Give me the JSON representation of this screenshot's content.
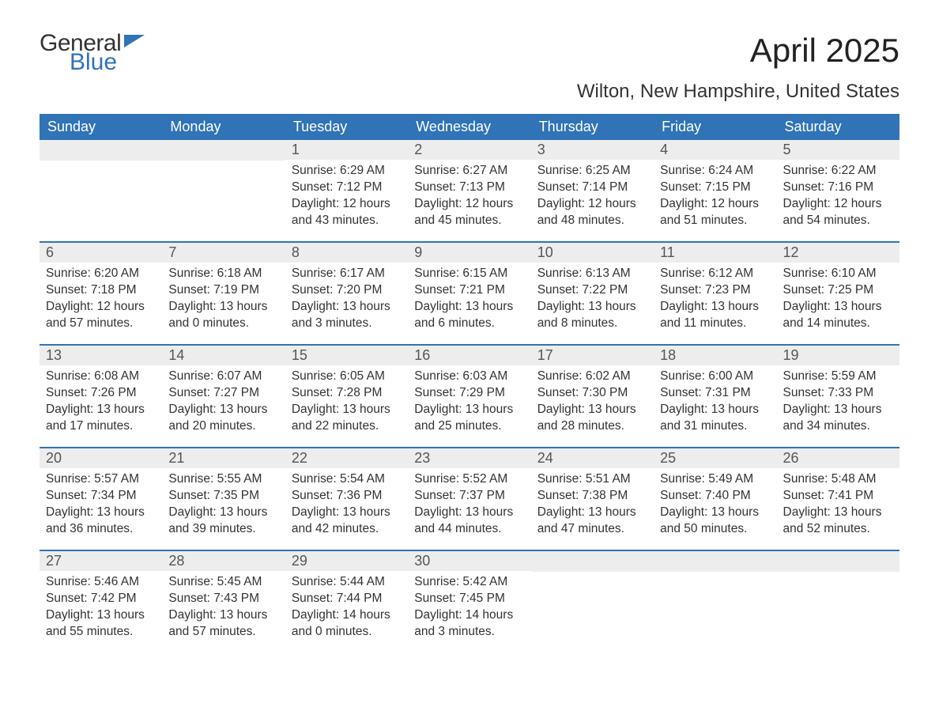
{
  "logo": {
    "line1": "General",
    "line2": "Blue",
    "flag_color": "#3073b7"
  },
  "title": "April 2025",
  "subtitle": "Wilton, New Hampshire, United States",
  "colors": {
    "header_bg": "#3073b7",
    "header_text": "#ffffff",
    "daynum_bg": "#ededed",
    "daynum_text": "#555555",
    "body_text": "#333333",
    "page_bg": "#ffffff"
  },
  "typography": {
    "title_fontsize": 42,
    "subtitle_fontsize": 24,
    "header_fontsize": 18,
    "daynum_fontsize": 18,
    "body_fontsize": 15.5
  },
  "day_headers": [
    "Sunday",
    "Monday",
    "Tuesday",
    "Wednesday",
    "Thursday",
    "Friday",
    "Saturday"
  ],
  "weeks": [
    [
      null,
      null,
      {
        "n": "1",
        "sunrise": "6:29 AM",
        "sunset": "7:12 PM",
        "dl1": "12 hours",
        "dl2": "and 43 minutes."
      },
      {
        "n": "2",
        "sunrise": "6:27 AM",
        "sunset": "7:13 PM",
        "dl1": "12 hours",
        "dl2": "and 45 minutes."
      },
      {
        "n": "3",
        "sunrise": "6:25 AM",
        "sunset": "7:14 PM",
        "dl1": "12 hours",
        "dl2": "and 48 minutes."
      },
      {
        "n": "4",
        "sunrise": "6:24 AM",
        "sunset": "7:15 PM",
        "dl1": "12 hours",
        "dl2": "and 51 minutes."
      },
      {
        "n": "5",
        "sunrise": "6:22 AM",
        "sunset": "7:16 PM",
        "dl1": "12 hours",
        "dl2": "and 54 minutes."
      }
    ],
    [
      {
        "n": "6",
        "sunrise": "6:20 AM",
        "sunset": "7:18 PM",
        "dl1": "12 hours",
        "dl2": "and 57 minutes."
      },
      {
        "n": "7",
        "sunrise": "6:18 AM",
        "sunset": "7:19 PM",
        "dl1": "13 hours",
        "dl2": "and 0 minutes."
      },
      {
        "n": "8",
        "sunrise": "6:17 AM",
        "sunset": "7:20 PM",
        "dl1": "13 hours",
        "dl2": "and 3 minutes."
      },
      {
        "n": "9",
        "sunrise": "6:15 AM",
        "sunset": "7:21 PM",
        "dl1": "13 hours",
        "dl2": "and 6 minutes."
      },
      {
        "n": "10",
        "sunrise": "6:13 AM",
        "sunset": "7:22 PM",
        "dl1": "13 hours",
        "dl2": "and 8 minutes."
      },
      {
        "n": "11",
        "sunrise": "6:12 AM",
        "sunset": "7:23 PM",
        "dl1": "13 hours",
        "dl2": "and 11 minutes."
      },
      {
        "n": "12",
        "sunrise": "6:10 AM",
        "sunset": "7:25 PM",
        "dl1": "13 hours",
        "dl2": "and 14 minutes."
      }
    ],
    [
      {
        "n": "13",
        "sunrise": "6:08 AM",
        "sunset": "7:26 PM",
        "dl1": "13 hours",
        "dl2": "and 17 minutes."
      },
      {
        "n": "14",
        "sunrise": "6:07 AM",
        "sunset": "7:27 PM",
        "dl1": "13 hours",
        "dl2": "and 20 minutes."
      },
      {
        "n": "15",
        "sunrise": "6:05 AM",
        "sunset": "7:28 PM",
        "dl1": "13 hours",
        "dl2": "and 22 minutes."
      },
      {
        "n": "16",
        "sunrise": "6:03 AM",
        "sunset": "7:29 PM",
        "dl1": "13 hours",
        "dl2": "and 25 minutes."
      },
      {
        "n": "17",
        "sunrise": "6:02 AM",
        "sunset": "7:30 PM",
        "dl1": "13 hours",
        "dl2": "and 28 minutes."
      },
      {
        "n": "18",
        "sunrise": "6:00 AM",
        "sunset": "7:31 PM",
        "dl1": "13 hours",
        "dl2": "and 31 minutes."
      },
      {
        "n": "19",
        "sunrise": "5:59 AM",
        "sunset": "7:33 PM",
        "dl1": "13 hours",
        "dl2": "and 34 minutes."
      }
    ],
    [
      {
        "n": "20",
        "sunrise": "5:57 AM",
        "sunset": "7:34 PM",
        "dl1": "13 hours",
        "dl2": "and 36 minutes."
      },
      {
        "n": "21",
        "sunrise": "5:55 AM",
        "sunset": "7:35 PM",
        "dl1": "13 hours",
        "dl2": "and 39 minutes."
      },
      {
        "n": "22",
        "sunrise": "5:54 AM",
        "sunset": "7:36 PM",
        "dl1": "13 hours",
        "dl2": "and 42 minutes."
      },
      {
        "n": "23",
        "sunrise": "5:52 AM",
        "sunset": "7:37 PM",
        "dl1": "13 hours",
        "dl2": "and 44 minutes."
      },
      {
        "n": "24",
        "sunrise": "5:51 AM",
        "sunset": "7:38 PM",
        "dl1": "13 hours",
        "dl2": "and 47 minutes."
      },
      {
        "n": "25",
        "sunrise": "5:49 AM",
        "sunset": "7:40 PM",
        "dl1": "13 hours",
        "dl2": "and 50 minutes."
      },
      {
        "n": "26",
        "sunrise": "5:48 AM",
        "sunset": "7:41 PM",
        "dl1": "13 hours",
        "dl2": "and 52 minutes."
      }
    ],
    [
      {
        "n": "27",
        "sunrise": "5:46 AM",
        "sunset": "7:42 PM",
        "dl1": "13 hours",
        "dl2": "and 55 minutes."
      },
      {
        "n": "28",
        "sunrise": "5:45 AM",
        "sunset": "7:43 PM",
        "dl1": "13 hours",
        "dl2": "and 57 minutes."
      },
      {
        "n": "29",
        "sunrise": "5:44 AM",
        "sunset": "7:44 PM",
        "dl1": "14 hours",
        "dl2": "and 0 minutes."
      },
      {
        "n": "30",
        "sunrise": "5:42 AM",
        "sunset": "7:45 PM",
        "dl1": "14 hours",
        "dl2": "and 3 minutes."
      },
      null,
      null,
      null
    ]
  ],
  "labels": {
    "sunrise": "Sunrise: ",
    "sunset": "Sunset: ",
    "daylight": "Daylight: "
  }
}
